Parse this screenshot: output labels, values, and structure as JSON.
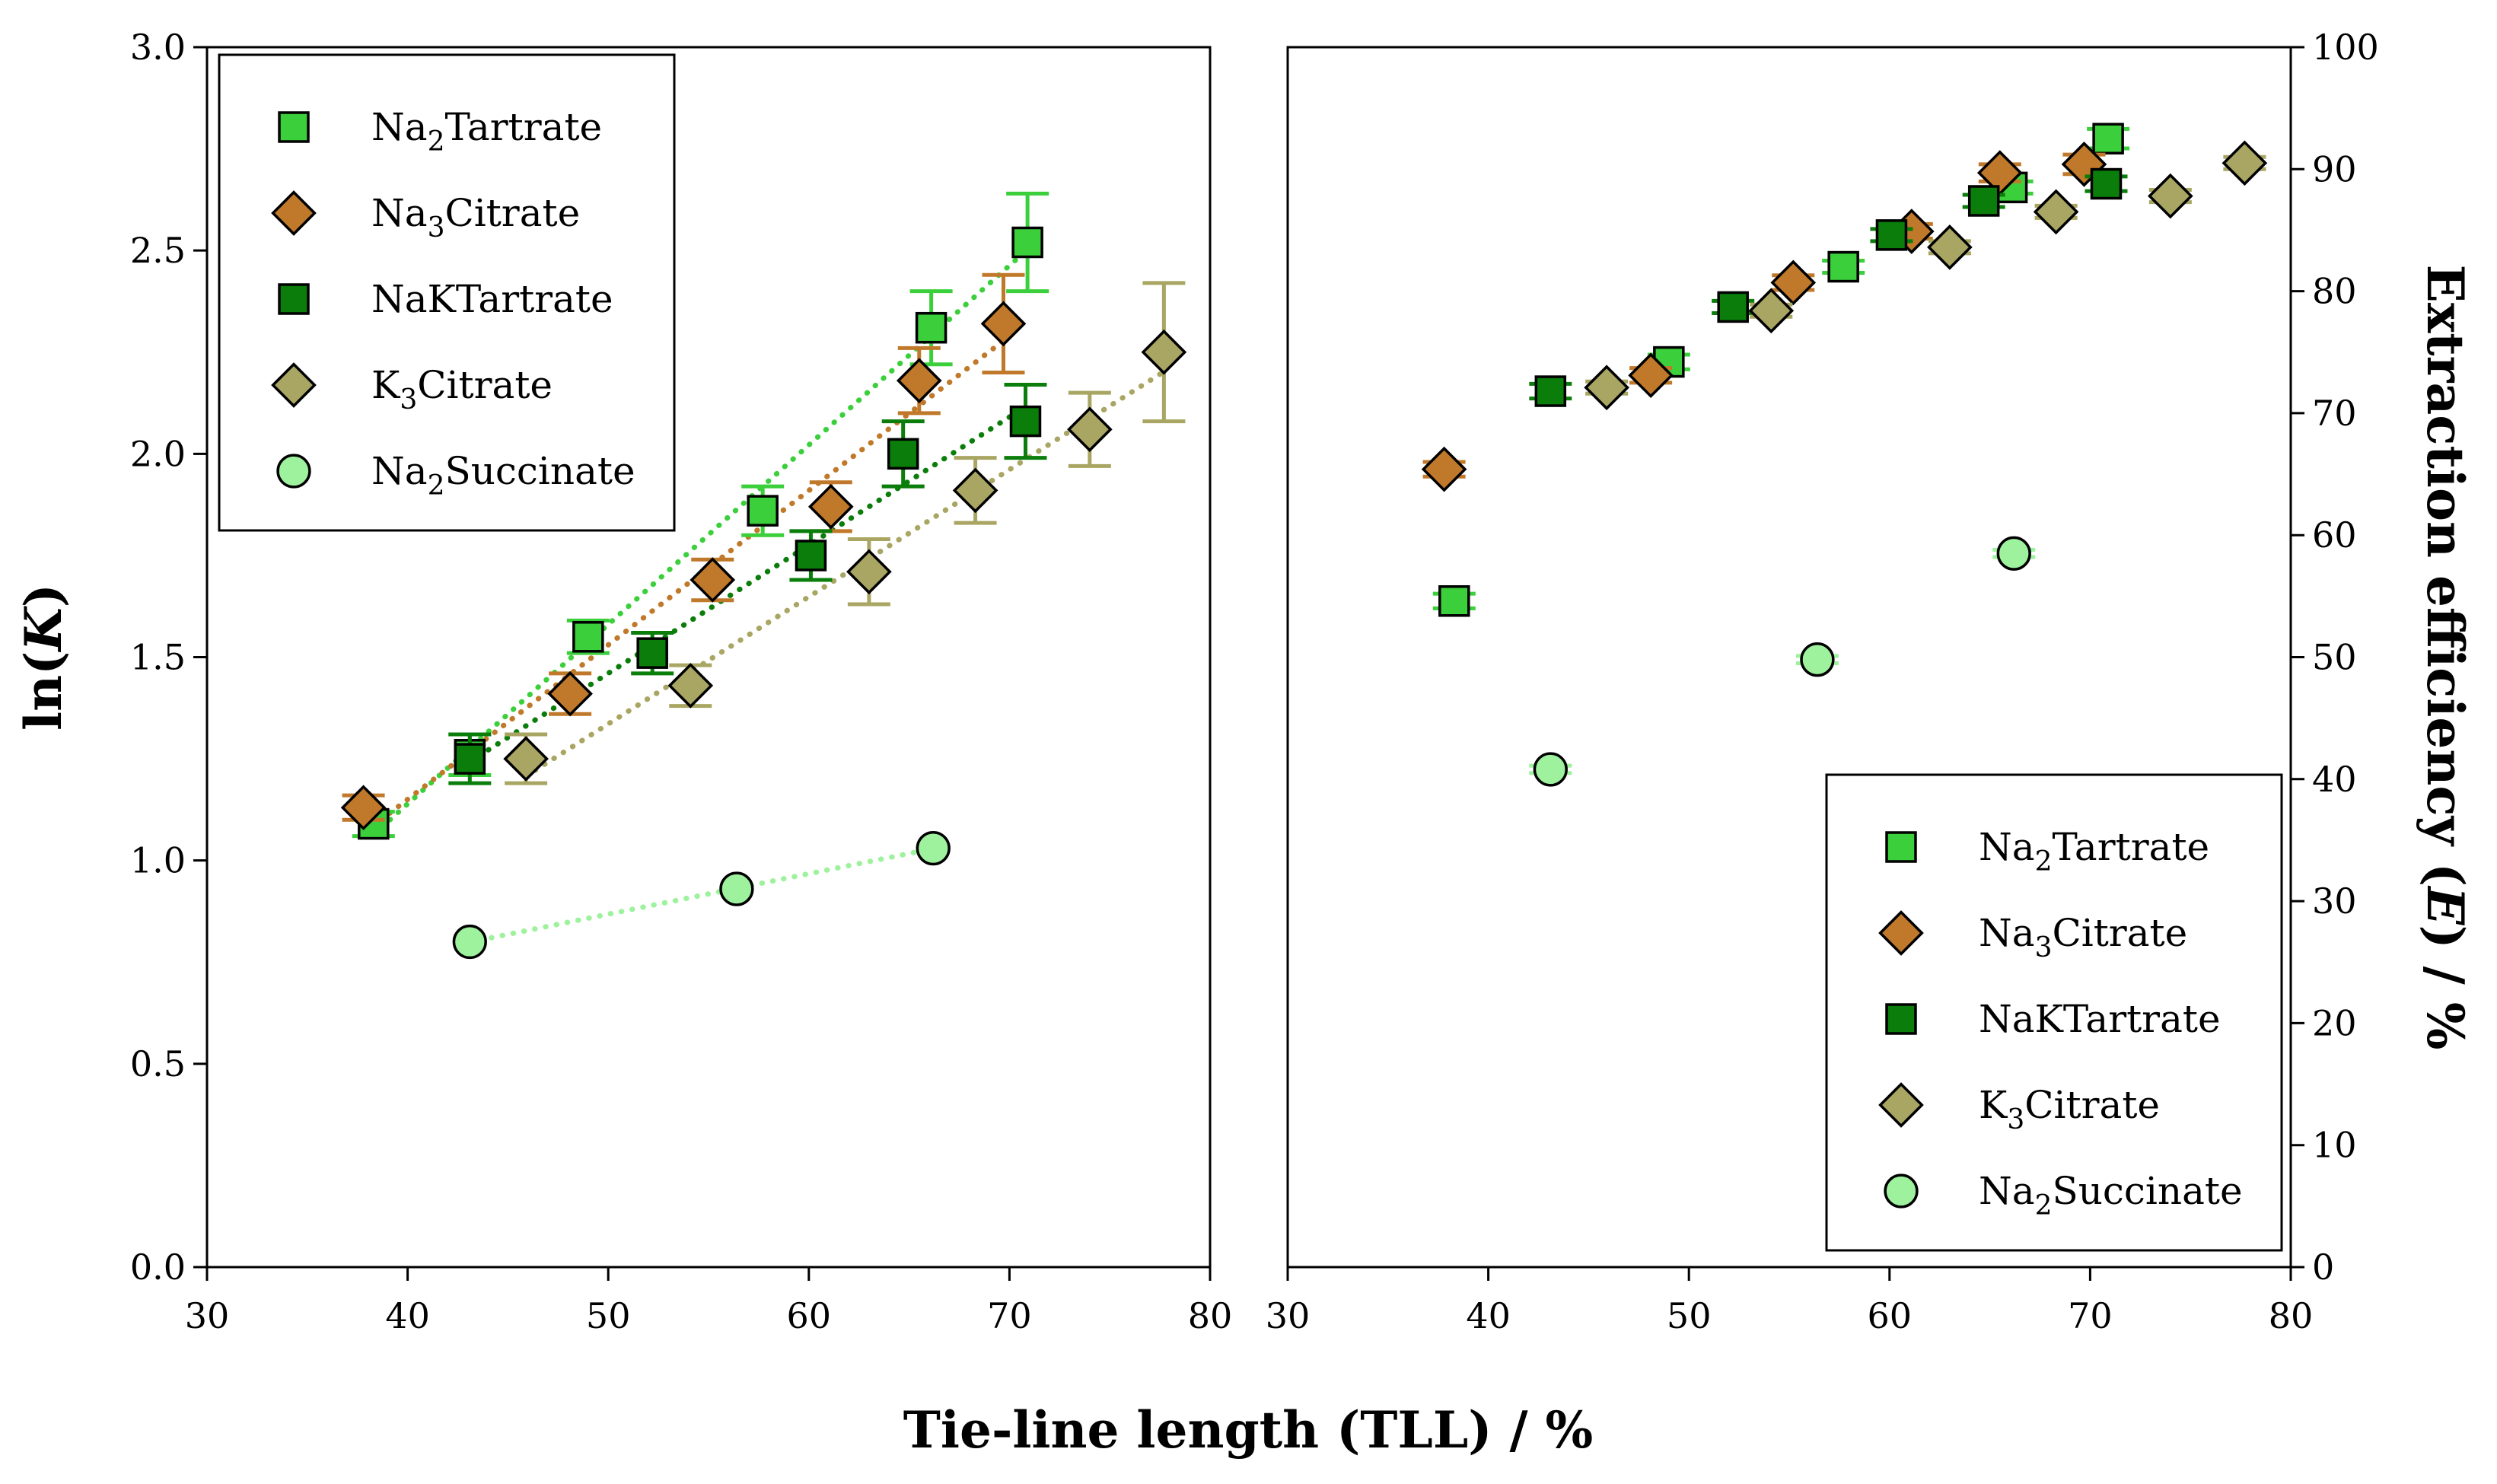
{
  "colors": {
    "Na2Tartrate": "#3ccf3c",
    "Na3Citrate": "#c0792a",
    "NaKTartrate": "#0a7d0a",
    "K3Citrate": "#a9a663",
    "Na2Succinate": "#9ef29e"
  },
  "x_axis_title": "Tie-line length (TLL) / %",
  "chart_data": [
    {
      "type": "scatter",
      "panel": "left",
      "ylabel_main": "ln(",
      "ylabel_italic": "K",
      "ylabel_end": ")",
      "xlim": [
        30,
        80
      ],
      "ylim": [
        0.0,
        3.0
      ],
      "xticks": [
        "30",
        "40",
        "50",
        "60",
        "70",
        "80"
      ],
      "yticks": [
        "0.0",
        "0.5",
        "1.0",
        "1.5",
        "2.0",
        "2.5",
        "3.0"
      ],
      "legend_position": "top-left",
      "legend": [
        {
          "key": "Na2Tartrate",
          "marker": "square",
          "main": "Na",
          "sub": "2",
          "rest": "Tartrate"
        },
        {
          "key": "Na3Citrate",
          "marker": "diamond",
          "main": "Na",
          "sub": "3",
          "rest": "Citrate"
        },
        {
          "key": "NaKTartrate",
          "marker": "square",
          "main": "NaKTartrate",
          "sub": "",
          "rest": ""
        },
        {
          "key": "K3Citrate",
          "marker": "diamond",
          "main": "K",
          "sub": "3",
          "rest": "Citrate"
        },
        {
          "key": "Na2Succinate",
          "marker": "circle",
          "main": "Na",
          "sub": "2",
          "rest": "Succinate"
        }
      ],
      "series": [
        {
          "key": "Na2Tartrate",
          "marker": "square",
          "x": [
            38.3,
            43.1,
            49.0,
            57.7,
            66.1,
            70.9
          ],
          "y": [
            1.09,
            1.26,
            1.55,
            1.86,
            2.31,
            2.52
          ],
          "err": [
            0.03,
            0.05,
            0.04,
            0.06,
            0.09,
            0.12
          ]
        },
        {
          "key": "Na3Citrate",
          "marker": "diamond",
          "x": [
            37.8,
            48.1,
            55.2,
            61.1,
            65.5,
            69.7
          ],
          "y": [
            1.13,
            1.41,
            1.69,
            1.87,
            2.18,
            2.32
          ],
          "err": [
            0.03,
            0.05,
            0.05,
            0.06,
            0.08,
            0.12
          ]
        },
        {
          "key": "NaKTartrate",
          "marker": "square",
          "x": [
            43.1,
            52.2,
            60.1,
            64.7,
            70.8
          ],
          "y": [
            1.25,
            1.51,
            1.75,
            2.0,
            2.08
          ],
          "err": [
            0.06,
            0.05,
            0.06,
            0.08,
            0.09
          ]
        },
        {
          "key": "K3Citrate",
          "marker": "diamond",
          "x": [
            45.9,
            54.1,
            63.0,
            68.3,
            74.0,
            77.7
          ],
          "y": [
            1.25,
            1.43,
            1.71,
            1.91,
            2.06,
            2.25
          ],
          "err": [
            0.06,
            0.05,
            0.08,
            0.08,
            0.09,
            0.17
          ]
        },
        {
          "key": "Na2Succinate",
          "marker": "circle",
          "x": [
            43.1,
            56.4,
            66.2
          ],
          "y": [
            0.8,
            0.93,
            1.03
          ],
          "err": [
            0.0,
            0.0,
            0.0
          ]
        }
      ],
      "trendlines": [
        {
          "key": "Na2Tartrate",
          "x": [
            38.3,
            70.9
          ]
        },
        {
          "key": "Na3Citrate",
          "x": [
            37.8,
            69.7
          ]
        },
        {
          "key": "NaKTartrate",
          "x": [
            43.1,
            70.8
          ]
        },
        {
          "key": "K3Citrate",
          "x": [
            45.9,
            77.7
          ]
        },
        {
          "key": "Na2Succinate",
          "x": [
            43.1,
            66.2
          ]
        }
      ]
    },
    {
      "type": "scatter",
      "panel": "right",
      "ylabel_main": "Extraction efficiency (",
      "ylabel_italic": "E",
      "ylabel_end": ") / %",
      "xlim": [
        30,
        80
      ],
      "ylim": [
        0,
        100
      ],
      "xticks": [
        "30",
        "40",
        "50",
        "60",
        "70",
        "80"
      ],
      "yticks": [
        "0",
        "10",
        "20",
        "30",
        "40",
        "50",
        "60",
        "70",
        "80",
        "90",
        "100"
      ],
      "legend_position": "bottom-right",
      "legend": [
        {
          "key": "Na2Tartrate",
          "marker": "square",
          "main": "Na",
          "sub": "2",
          "rest": "Tartrate"
        },
        {
          "key": "Na3Citrate",
          "marker": "diamond",
          "main": "Na",
          "sub": "3",
          "rest": "Citrate"
        },
        {
          "key": "NaKTartrate",
          "marker": "square",
          "main": "NaKTartrate",
          "sub": "",
          "rest": ""
        },
        {
          "key": "K3Citrate",
          "marker": "diamond",
          "main": "K",
          "sub": "3",
          "rest": "Citrate"
        },
        {
          "key": "Na2Succinate",
          "marker": "circle",
          "main": "Na",
          "sub": "2",
          "rest": "Succinate"
        }
      ],
      "series": [
        {
          "key": "Na2Tartrate",
          "marker": "square",
          "x": [
            38.3,
            49.0,
            57.7,
            66.1,
            70.9
          ],
          "y": [
            54.6,
            74.2,
            82.0,
            88.5,
            92.5
          ],
          "err": [
            0.6,
            0.6,
            0.5,
            0.5,
            0.8
          ]
        },
        {
          "key": "Na3Citrate",
          "marker": "diamond",
          "x": [
            37.8,
            48.1,
            55.2,
            61.1,
            65.5,
            69.7
          ],
          "y": [
            65.4,
            73.1,
            80.7,
            84.9,
            89.7,
            90.4
          ],
          "err": [
            0.6,
            0.6,
            0.6,
            0.6,
            0.7,
            0.8
          ]
        },
        {
          "key": "NaKTartrate",
          "marker": "square",
          "x": [
            43.1,
            52.2,
            60.1,
            64.7,
            70.8
          ],
          "y": [
            71.8,
            78.7,
            84.6,
            87.4,
            88.8
          ],
          "err": [
            0.6,
            0.5,
            0.5,
            0.5,
            0.6
          ]
        },
        {
          "key": "K3Citrate",
          "marker": "diamond",
          "x": [
            45.9,
            54.1,
            63.0,
            68.3,
            74.0,
            77.7
          ],
          "y": [
            72.1,
            78.4,
            83.6,
            86.5,
            87.8,
            90.5
          ],
          "err": [
            0.5,
            0.5,
            0.5,
            0.5,
            0.5,
            0.5
          ]
        },
        {
          "key": "Na2Succinate",
          "marker": "circle",
          "x": [
            43.1,
            56.4,
            66.2
          ],
          "y": [
            40.8,
            49.8,
            58.5
          ],
          "err": [
            0.3,
            0.3,
            0.3
          ]
        }
      ]
    }
  ]
}
